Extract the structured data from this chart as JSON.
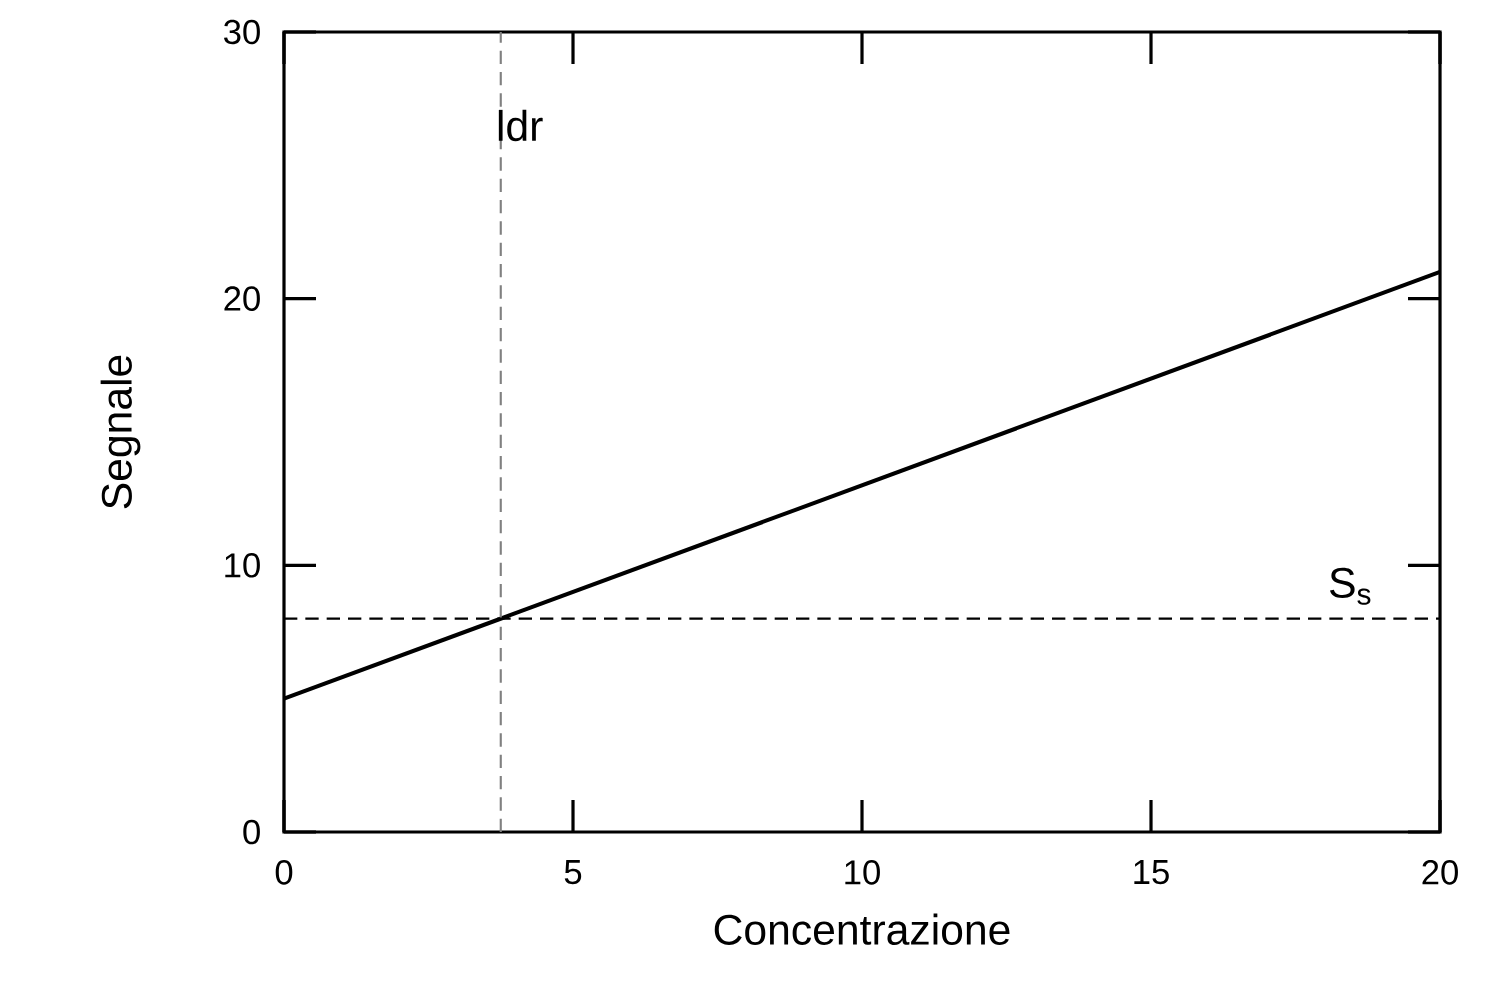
{
  "chart_data": {
    "type": "line",
    "xlabel": "Concentrazione",
    "ylabel": "Segnale",
    "x": [
      0,
      20
    ],
    "series": [
      {
        "color": "#000000",
        "values": [
          5,
          21
        ]
      }
    ],
    "xlim": [
      0,
      20
    ],
    "ylim": [
      0,
      30
    ],
    "xticks": [
      0,
      5,
      10,
      15,
      20
    ],
    "yticks": [
      0,
      10,
      20,
      30
    ],
    "ref_lines": [
      {
        "axis": "x",
        "value": 3.75,
        "label": "ldr",
        "color": "#808080",
        "line_style": "dashed"
      },
      {
        "axis": "y",
        "value": 8,
        "label": "S$_{s}$",
        "color": "#000000",
        "line_style": "dashed"
      }
    ],
    "grid": false,
    "marker": "none",
    "line_style": "solid"
  }
}
